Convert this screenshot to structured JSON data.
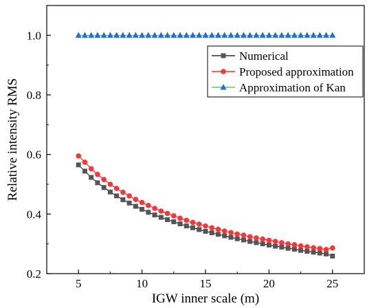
{
  "chart_data": {
    "type": "line",
    "title": "",
    "xlabel": "IGW inner scale (m)",
    "ylabel": "Relative intensity RMS",
    "xlim": [
      2.5,
      27.5
    ],
    "ylim": [
      0.2,
      1.1
    ],
    "xticks": [
      5,
      10,
      15,
      20,
      25
    ],
    "yticks": [
      0.2,
      0.4,
      0.6,
      0.8,
      1.0
    ],
    "xtick_labels": [
      "5",
      "10",
      "15",
      "20",
      "25"
    ],
    "ytick_labels": [
      "0.2",
      "0.4",
      "0.6",
      "0.8",
      "1.0"
    ],
    "grid": false,
    "legend_position": "top-right",
    "x": [
      5,
      5.5,
      6,
      6.5,
      7,
      7.5,
      8,
      8.5,
      9,
      9.5,
      10,
      10.5,
      11,
      11.5,
      12,
      12.5,
      13,
      13.5,
      14,
      14.5,
      15,
      15.5,
      16,
      16.5,
      17,
      17.5,
      18,
      18.5,
      19,
      19.5,
      20,
      20.5,
      21,
      21.5,
      22,
      22.5,
      23,
      23.5,
      24,
      24.5,
      25
    ],
    "series": [
      {
        "name": "Numerical",
        "color": "#555555",
        "line_color": "#000000",
        "marker": "square",
        "values": [
          0.565,
          0.544,
          0.523,
          0.505,
          0.489,
          0.474,
          0.461,
          0.448,
          0.437,
          0.426,
          0.416,
          0.406,
          0.397,
          0.389,
          0.381,
          0.374,
          0.367,
          0.36,
          0.354,
          0.348,
          0.342,
          0.337,
          0.332,
          0.327,
          0.322,
          0.317,
          0.313,
          0.308,
          0.304,
          0.3,
          0.296,
          0.292,
          0.289,
          0.285,
          0.282,
          0.278,
          0.275,
          0.272,
          0.269,
          0.266,
          0.259
        ]
      },
      {
        "name": "Proposed approximation",
        "color": "#ff3333",
        "line_color": "#ff0000",
        "marker": "circle",
        "values": [
          0.595,
          0.574,
          0.552,
          0.533,
          0.516,
          0.5,
          0.486,
          0.473,
          0.461,
          0.449,
          0.439,
          0.429,
          0.419,
          0.41,
          0.402,
          0.394,
          0.386,
          0.379,
          0.372,
          0.366,
          0.36,
          0.354,
          0.349,
          0.343,
          0.338,
          0.333,
          0.329,
          0.324,
          0.32,
          0.316,
          0.312,
          0.308,
          0.304,
          0.3,
          0.297,
          0.293,
          0.29,
          0.287,
          0.284,
          0.281,
          0.286
        ]
      },
      {
        "name": "Approximation of Kan",
        "color": "#1f6fe0",
        "line_color": "#33cc33",
        "marker": "triangle",
        "values": [
          1.0,
          1.0,
          1.0,
          1.0,
          1.0,
          1.0,
          1.0,
          1.0,
          1.0,
          1.0,
          1.0,
          1.0,
          1.0,
          1.0,
          1.0,
          1.0,
          1.0,
          1.0,
          1.0,
          1.0,
          1.0,
          1.0,
          1.0,
          1.0,
          1.0,
          1.0,
          1.0,
          1.0,
          1.0,
          1.0,
          1.0,
          1.0,
          1.0,
          1.0,
          1.0,
          1.0,
          1.0,
          1.0,
          1.0,
          1.0,
          1.0
        ]
      }
    ]
  }
}
